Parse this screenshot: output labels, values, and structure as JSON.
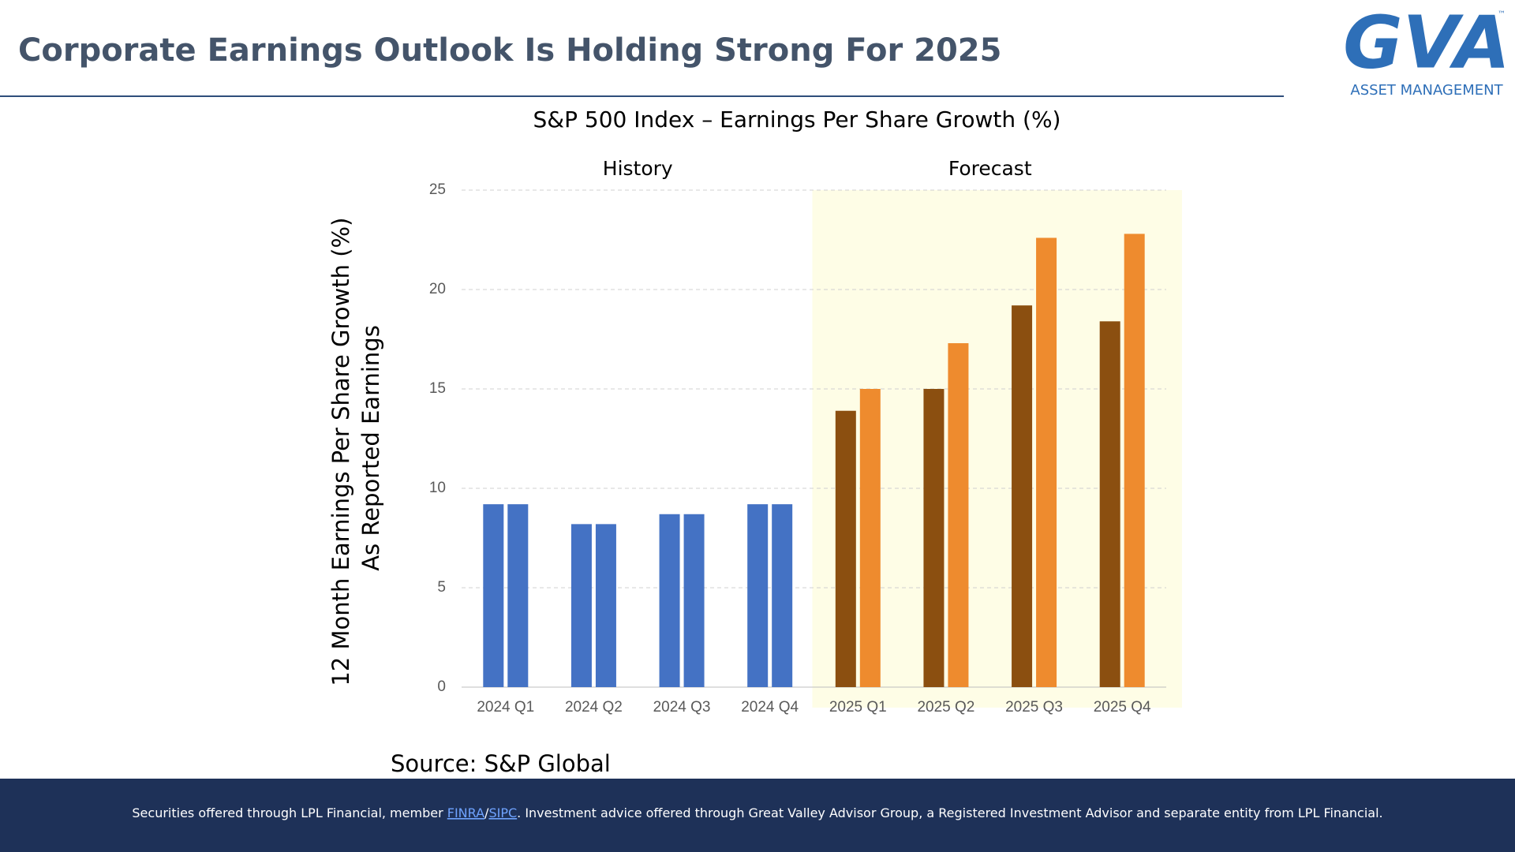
{
  "header": {
    "title": "Corporate Earnings Outlook Is Holding Strong For 2025"
  },
  "logo": {
    "mark": "GVA",
    "tm": "™",
    "subtitle": "ASSET MANAGEMENT"
  },
  "chart_data": {
    "type": "bar",
    "title": "S&P 500 Index – Earnings Per Share Growth (%)",
    "y_label": [
      "12 Month Earnings Per Share Growth (%)",
      "As Reported Earnings"
    ],
    "annotations": [
      "History",
      "Forecast"
    ],
    "categories": [
      "2024 Q1",
      "2024 Q2",
      "2024 Q3",
      "2024 Q4",
      "2025 Q1",
      "2025 Q2",
      "2025 Q3",
      "2025 Q4"
    ],
    "series": [
      {
        "colors": [
          "#4472c4",
          "#4472c4",
          "#4472c4",
          "#4472c4",
          "#8b4f10",
          "#8b4f10",
          "#8b4f10",
          "#8b4f10"
        ],
        "values": [
          9.2,
          8.2,
          8.7,
          9.2,
          13.9,
          15.0,
          19.2,
          18.4
        ]
      },
      {
        "colors": [
          "#4472c4",
          "#4472c4",
          "#4472c4",
          "#4472c4",
          "#ee8b2e",
          "#ee8b2e",
          "#ee8b2e",
          "#ee8b2e"
        ],
        "values": [
          9.2,
          8.2,
          8.7,
          9.2,
          15.0,
          17.3,
          22.6,
          22.8
        ]
      }
    ],
    "forecast_shade": {
      "start": 4,
      "color": "#fefde6"
    },
    "ylim": [
      0,
      25
    ],
    "yticks": [
      0,
      5,
      10,
      15,
      20,
      25
    ],
    "grid": true,
    "source": "Source: S&P Global"
  },
  "footer": {
    "before": "Securities offered through LPL Financial, member ",
    "links": [
      "FINRA",
      "SIPC"
    ],
    "separator": "/",
    "after": ". Investment advice offered through Great Valley Advisor Group, a Registered Investment Advisor and separate entity from LPL Financial."
  }
}
